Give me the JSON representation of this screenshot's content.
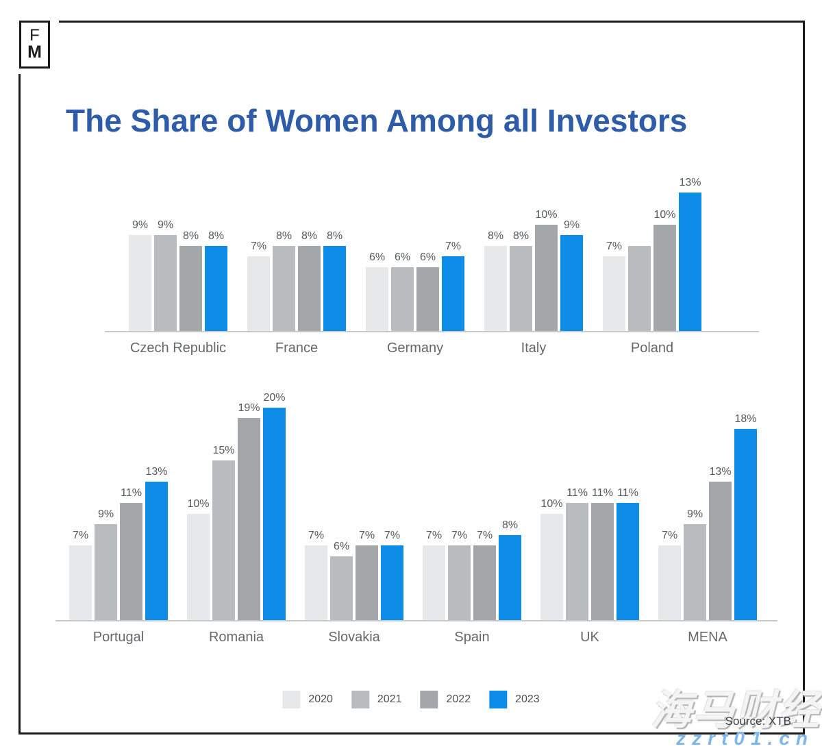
{
  "title": "The Share of Women Among all Investors",
  "logo": {
    "line1": "F",
    "line2": "M"
  },
  "source": "Source: XTB",
  "watermarks": {
    "chinese": "海马财经",
    "url": "zzrt01.cn"
  },
  "legend": {
    "position": "bottom-center",
    "items": [
      {
        "label": "2020",
        "color": "#e7e8ea"
      },
      {
        "label": "2021",
        "color": "#b9bcbf"
      },
      {
        "label": "2022",
        "color": "#a4a7aa"
      },
      {
        "label": "2023",
        "color": "#0d8ce8"
      }
    ]
  },
  "colors": {
    "title": "#2e5ca8",
    "accent_2023": "#0d8ce8",
    "bar_2020": "#e7e8ea",
    "bar_2021": "#b9bcbf",
    "bar_2022": "#a4a7aa",
    "data_label": "#55585c",
    "category_label": "#64676b",
    "frame": "#1b1b1b"
  },
  "chart_data": {
    "type": "bar",
    "title": "The Share of Women Among all Investors",
    "unit": "%",
    "ylim": [
      0,
      22
    ],
    "grid": false,
    "series_years": [
      "2020",
      "2021",
      "2022",
      "2023"
    ],
    "series_colors": {
      "2020": "#e7e8ea",
      "2021": "#b9bcbf",
      "2022": "#a4a7aa",
      "2023": "#0d8ce8"
    },
    "rows": [
      {
        "categories": [
          "Czech Republic",
          "France",
          "Germany",
          "Italy",
          "Poland"
        ],
        "groups": [
          {
            "country": "Czech Republic",
            "values": [
              9,
              9,
              8,
              8
            ],
            "labels": [
              "9%",
              "9%",
              "8%",
              "8%"
            ]
          },
          {
            "country": "France",
            "values": [
              7,
              8,
              8,
              8
            ],
            "labels": [
              "7%",
              "8%",
              "8%",
              "8%"
            ]
          },
          {
            "country": "Germany",
            "values": [
              6,
              6,
              6,
              7
            ],
            "labels": [
              "6%",
              "6%",
              "6%",
              "7%"
            ]
          },
          {
            "country": "Italy",
            "values": [
              8,
              8,
              10,
              9
            ],
            "labels": [
              "8%",
              "8%",
              "10%",
              "9%"
            ]
          },
          {
            "country": "Poland",
            "values": [
              7,
              8,
              10,
              13
            ],
            "labels": [
              "7%",
              "",
              "10%",
              "13%"
            ]
          }
        ]
      },
      {
        "categories": [
          "Portugal",
          "Romania",
          "Slovakia",
          "Spain",
          "UK",
          "MENA"
        ],
        "groups": [
          {
            "country": "Portugal",
            "values": [
              7,
              9,
              11,
              13
            ],
            "labels": [
              "7%",
              "9%",
              "11%",
              "13%"
            ]
          },
          {
            "country": "Romania",
            "values": [
              10,
              15,
              19,
              20
            ],
            "labels": [
              "10%",
              "15%",
              "19%",
              "20%"
            ]
          },
          {
            "country": "Slovakia",
            "values": [
              7,
              6,
              7,
              7
            ],
            "labels": [
              "7%",
              "6%",
              "7%",
              "7%"
            ]
          },
          {
            "country": "Spain",
            "values": [
              7,
              7,
              7,
              8
            ],
            "labels": [
              "7%",
              "7%",
              "7%",
              "8%"
            ]
          },
          {
            "country": "UK",
            "values": [
              10,
              11,
              11,
              11
            ],
            "labels": [
              "10%",
              "11%",
              "11%",
              "11%"
            ]
          },
          {
            "country": "MENA",
            "values": [
              7,
              9,
              13,
              18
            ],
            "labels": [
              "7%",
              "9%",
              "13%",
              "18%"
            ]
          }
        ]
      }
    ]
  }
}
